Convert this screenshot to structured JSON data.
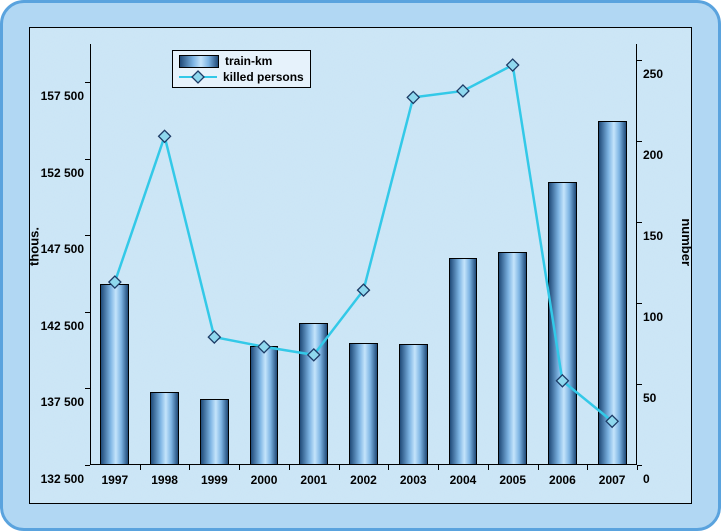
{
  "chart": {
    "type": "combo-bar-line",
    "background_frame_color": "#b1d7f3",
    "frame_border_color": "#5aa3de",
    "plot_background_color": "#c9e4f5",
    "categories": [
      "1997",
      "1998",
      "1999",
      "2000",
      "2001",
      "2002",
      "2003",
      "2004",
      "2005",
      "2006",
      "2007"
    ],
    "bars": {
      "legend_label": "train-km",
      "values": [
        144300,
        137300,
        136800,
        140300,
        141800,
        140500,
        140400,
        146000,
        146400,
        151000,
        155000
      ],
      "axis": "left",
      "bar_width_ratio": 0.58
    },
    "line": {
      "legend_label": "killed persons",
      "values": [
        113,
        203,
        79,
        73,
        68,
        108,
        227,
        231,
        247,
        52,
        27
      ],
      "axis": "right",
      "color": "#33c9e8",
      "marker_fill": "#8fd8ee",
      "marker_border": "#1d3b66",
      "marker_size": 12,
      "line_width": 2.5
    },
    "left_axis": {
      "label": "thous.",
      "min": 132500,
      "max": 160000,
      "ticks": [
        132500,
        137500,
        142500,
        147500,
        152500,
        157500
      ]
    },
    "right_axis": {
      "label": "number",
      "min": 0,
      "max": 260,
      "ticks": [
        0,
        50,
        100,
        150,
        200,
        250
      ]
    },
    "fonts": {
      "axis_label_pt": 13,
      "tick_pt": 12,
      "legend_pt": 12,
      "weight": "bold",
      "color": "#000000"
    }
  }
}
